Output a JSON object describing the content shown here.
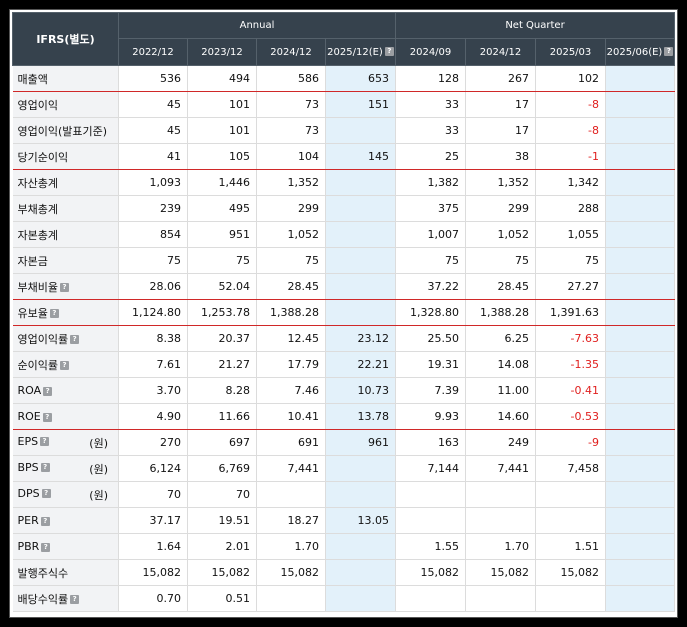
{
  "header": {
    "ifrs": "IFRS(별도)",
    "group_annual": "Annual",
    "group_quarter": "Net Quarter",
    "periods": [
      "2022/12",
      "2023/12",
      "2024/12",
      "2025/12(E)",
      "2024/09",
      "2024/12",
      "2025/03",
      "2025/06(E)"
    ]
  },
  "rows": [
    {
      "label": "매출액",
      "help": false,
      "unit": "",
      "values": [
        "536",
        "494",
        "586",
        "653",
        "128",
        "267",
        "102",
        ""
      ]
    },
    {
      "label": "영업이익",
      "help": false,
      "unit": "",
      "values": [
        "45",
        "101",
        "73",
        "151",
        "33",
        "17",
        "-8",
        ""
      ]
    },
    {
      "label": "영업이익(발표기준)",
      "help": false,
      "unit": "",
      "values": [
        "45",
        "101",
        "73",
        "",
        "33",
        "17",
        "-8",
        ""
      ]
    },
    {
      "label": "당기순이익",
      "help": false,
      "unit": "",
      "values": [
        "41",
        "105",
        "104",
        "145",
        "25",
        "38",
        "-1",
        ""
      ]
    },
    {
      "label": "자산총계",
      "help": false,
      "unit": "",
      "values": [
        "1,093",
        "1,446",
        "1,352",
        "",
        "1,382",
        "1,352",
        "1,342",
        ""
      ]
    },
    {
      "label": "부채총계",
      "help": false,
      "unit": "",
      "values": [
        "239",
        "495",
        "299",
        "",
        "375",
        "299",
        "288",
        ""
      ]
    },
    {
      "label": "자본총계",
      "help": false,
      "unit": "",
      "values": [
        "854",
        "951",
        "1,052",
        "",
        "1,007",
        "1,052",
        "1,055",
        ""
      ]
    },
    {
      "label": "자본금",
      "help": false,
      "unit": "",
      "values": [
        "75",
        "75",
        "75",
        "",
        "75",
        "75",
        "75",
        ""
      ]
    },
    {
      "label": "부채비율",
      "help": true,
      "unit": "",
      "values": [
        "28.06",
        "52.04",
        "28.45",
        "",
        "37.22",
        "28.45",
        "27.27",
        ""
      ]
    },
    {
      "label": "유보율",
      "help": true,
      "unit": "",
      "values": [
        "1,124.80",
        "1,253.78",
        "1,388.28",
        "",
        "1,328.80",
        "1,388.28",
        "1,391.63",
        ""
      ]
    },
    {
      "label": "영업이익률",
      "help": true,
      "unit": "",
      "values": [
        "8.38",
        "20.37",
        "12.45",
        "23.12",
        "25.50",
        "6.25",
        "-7.63",
        ""
      ]
    },
    {
      "label": "순이익률",
      "help": true,
      "unit": "",
      "values": [
        "7.61",
        "21.27",
        "17.79",
        "22.21",
        "19.31",
        "14.08",
        "-1.35",
        ""
      ]
    },
    {
      "label": "ROA",
      "help": true,
      "unit": "",
      "values": [
        "3.70",
        "8.28",
        "7.46",
        "10.73",
        "7.39",
        "11.00",
        "-0.41",
        ""
      ]
    },
    {
      "label": "ROE",
      "help": true,
      "unit": "",
      "values": [
        "4.90",
        "11.66",
        "10.41",
        "13.78",
        "9.93",
        "14.60",
        "-0.53",
        ""
      ]
    },
    {
      "label": "EPS",
      "help": true,
      "unit": "(원)",
      "values": [
        "270",
        "697",
        "691",
        "961",
        "163",
        "249",
        "-9",
        ""
      ]
    },
    {
      "label": "BPS",
      "help": true,
      "unit": "(원)",
      "values": [
        "6,124",
        "6,769",
        "7,441",
        "",
        "7,144",
        "7,441",
        "7,458",
        ""
      ]
    },
    {
      "label": "DPS",
      "help": true,
      "unit": "(원)",
      "values": [
        "70",
        "70",
        "",
        "",
        "",
        "",
        "",
        ""
      ]
    },
    {
      "label": "PER",
      "help": true,
      "unit": "",
      "values": [
        "37.17",
        "19.51",
        "18.27",
        "13.05",
        "",
        "",
        "",
        ""
      ]
    },
    {
      "label": "PBR",
      "help": true,
      "unit": "",
      "values": [
        "1.64",
        "2.01",
        "1.70",
        "",
        "1.55",
        "1.70",
        "1.51",
        ""
      ]
    },
    {
      "label": "발행주식수",
      "help": false,
      "unit": "",
      "values": [
        "15,082",
        "15,082",
        "15,082",
        "",
        "15,082",
        "15,082",
        "15,082",
        ""
      ]
    },
    {
      "label": "배당수익률",
      "help": true,
      "unit": "",
      "values": [
        "0.70",
        "0.51",
        "",
        "",
        "",
        "",
        "",
        ""
      ]
    }
  ],
  "help_glyph": "?",
  "colors": {
    "header_bg": "#36424d",
    "estimate_bg": "#e3f1fa",
    "negative": "#e0201f",
    "separator": "#d02828"
  }
}
